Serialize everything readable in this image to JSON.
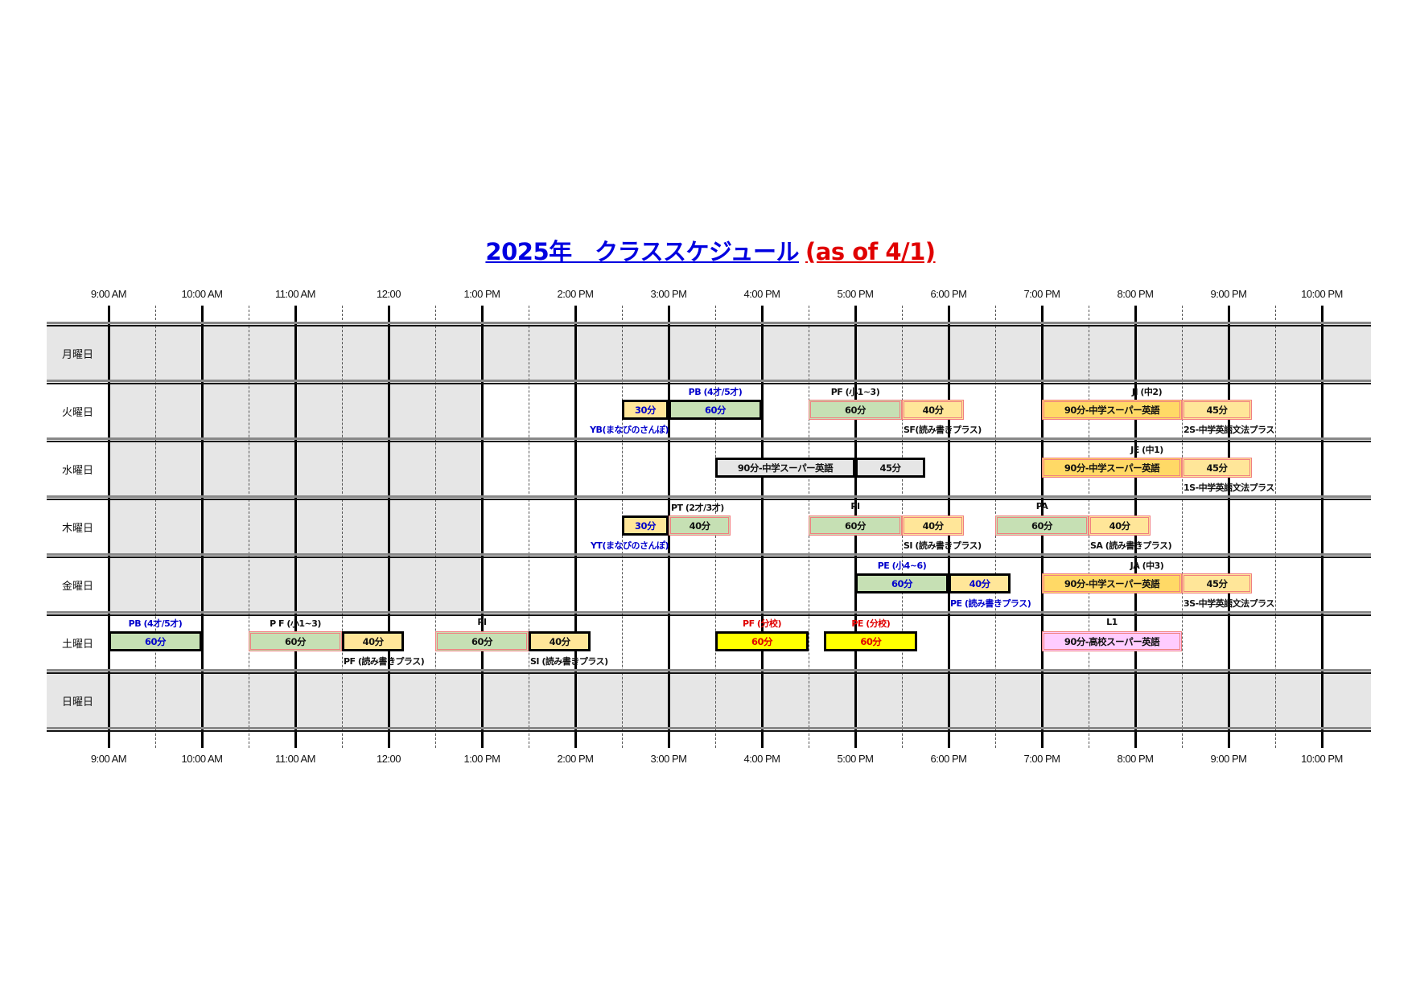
{
  "title": {
    "main": "2025年　クラススケジュール",
    "suffix": "(as of 4/1)"
  },
  "colors": {
    "title_blue": "#0000e0",
    "title_red": "#e00000",
    "green": "#c6e0b4",
    "yellow": "#ffe699",
    "orange": "#ffd966",
    "grey": "#e6e6e6",
    "bright_yellow": "#ffff00",
    "pink": "#ffccff",
    "red_border": "#f08080",
    "blue_text": "#0000cc",
    "red_text": "#e00000"
  },
  "time_ticks": [
    "9:00 AM",
    "10:00 AM",
    "11:00 AM",
    "12:00",
    "1:00 PM",
    "2:00 PM",
    "3:00 PM",
    "4:00 PM",
    "5:00 PM",
    "6:00 PM",
    "7:00 PM",
    "8:00 PM",
    "9:00 PM",
    "10:00 PM"
  ],
  "days": [
    {
      "label": "月曜日",
      "closed": true
    },
    {
      "label": "火曜日",
      "morning_closed": true
    },
    {
      "label": "水曜日",
      "morning_closed": true
    },
    {
      "label": "木曜日",
      "morning_closed": true
    },
    {
      "label": "金曜日",
      "morning_closed": true
    },
    {
      "label": "土曜日"
    },
    {
      "label": "日曜日",
      "closed": true
    }
  ],
  "classes": [
    {
      "day": 1,
      "top": "",
      "bottom": "YB(まなびのさんぽ)",
      "bottom_anchor": "end-right",
      "text_color": "blue",
      "segments": [
        {
          "start": "14:30",
          "end": "15:00",
          "label": "30分",
          "fill": "yellow",
          "border": "black"
        }
      ]
    },
    {
      "day": 1,
      "top": "PB (4才/5才)",
      "top_over": "first",
      "text_color": "blue",
      "segments": [
        {
          "start": "15:00",
          "end": "16:00",
          "label": "60分",
          "fill": "green",
          "border": "black"
        }
      ]
    },
    {
      "day": 1,
      "top": "PF (小1~3)",
      "top_over": "first",
      "bottom": "SF(読み書きプラス)",
      "bottom_anchor": "second",
      "segments": [
        {
          "start": "16:30",
          "end": "17:30",
          "label": "60分",
          "fill": "green",
          "border": "red"
        },
        {
          "start": "17:30",
          "end": "18:10",
          "label": "40分",
          "fill": "yellow",
          "border": "red"
        }
      ]
    },
    {
      "day": 1,
      "top": "JI (中2)",
      "top_over": "group",
      "bottom": "2S-中学英語文法プラス",
      "bottom_anchor": "second",
      "segments": [
        {
          "start": "19:00",
          "end": "20:30",
          "label": "90分-中学スーパー英語",
          "fill": "orange",
          "border": "red"
        },
        {
          "start": "20:30",
          "end": "21:15",
          "label": "45分",
          "fill": "yellow",
          "border": "red"
        }
      ]
    },
    {
      "day": 2,
      "top": "",
      "segments": [
        {
          "start": "15:30",
          "end": "17:00",
          "label": "90分-中学スーパー英語",
          "fill": "grey",
          "border": "black"
        },
        {
          "start": "17:00",
          "end": "17:45",
          "label": "45分",
          "fill": "grey",
          "border": "black"
        }
      ]
    },
    {
      "day": 2,
      "top": "JE (中1)",
      "top_over": "group",
      "bottom": "1S-中学英語文法プラス",
      "bottom_anchor": "second",
      "segments": [
        {
          "start": "19:00",
          "end": "20:30",
          "label": "90分-中学スーパー英語",
          "fill": "orange",
          "border": "red"
        },
        {
          "start": "20:30",
          "end": "21:15",
          "label": "45分",
          "fill": "yellow",
          "border": "red"
        }
      ]
    },
    {
      "day": 3,
      "top": "",
      "bottom": "YT(まなびのさんぽ)",
      "bottom_anchor": "end-right",
      "text_color": "blue",
      "segments": [
        {
          "start": "14:30",
          "end": "15:00",
          "label": "30分",
          "fill": "yellow",
          "border": "black"
        }
      ]
    },
    {
      "day": 3,
      "top": "PT (2才/3才)",
      "top_over": "first-left",
      "segments": [
        {
          "start": "15:00",
          "end": "15:40",
          "label": "40分",
          "fill": "green",
          "border": "red"
        }
      ]
    },
    {
      "day": 3,
      "top": "PI",
      "top_over": "first",
      "bottom": "SI (読み書きプラス)",
      "bottom_anchor": "second",
      "segments": [
        {
          "start": "16:30",
          "end": "17:30",
          "label": "60分",
          "fill": "green",
          "border": "red"
        },
        {
          "start": "17:30",
          "end": "18:10",
          "label": "40分",
          "fill": "yellow",
          "border": "red"
        }
      ]
    },
    {
      "day": 3,
      "top": "PA",
      "top_over": "first",
      "bottom": "SA (読み書きプラス)",
      "bottom_anchor": "second",
      "segments": [
        {
          "start": "18:30",
          "end": "19:30",
          "label": "60分",
          "fill": "green",
          "border": "red"
        },
        {
          "start": "19:30",
          "end": "20:10",
          "label": "40分",
          "fill": "yellow",
          "border": "red"
        }
      ]
    },
    {
      "day": 4,
      "top": "PE (小4~6)",
      "top_over": "first",
      "bottom": "PE (読み書きプラス)",
      "bottom_anchor": "second",
      "text_color": "blue",
      "segments": [
        {
          "start": "17:00",
          "end": "18:00",
          "label": "60分",
          "fill": "green",
          "border": "black"
        },
        {
          "start": "18:00",
          "end": "18:40",
          "label": "40分",
          "fill": "yellow",
          "border": "black"
        }
      ]
    },
    {
      "day": 4,
      "top": "JA (中3)",
      "top_over": "group",
      "bottom": "3S-中学英語文法プラス",
      "bottom_anchor": "second",
      "segments": [
        {
          "start": "19:00",
          "end": "20:30",
          "label": "90分-中学スーパー英語",
          "fill": "orange",
          "border": "red"
        },
        {
          "start": "20:30",
          "end": "21:15",
          "label": "45分",
          "fill": "yellow",
          "border": "red"
        }
      ]
    },
    {
      "day": 5,
      "top": "PB (4才/5才)",
      "top_over": "first",
      "text_color": "blue",
      "segments": [
        {
          "start": "9:00",
          "end": "10:00",
          "label": "60分",
          "fill": "green",
          "border": "black"
        }
      ]
    },
    {
      "day": 5,
      "top": "P F (小1~3)",
      "top_over": "first",
      "bottom": "PF (読み書きプラス)",
      "bottom_anchor": "second",
      "segments": [
        {
          "start": "10:30",
          "end": "11:30",
          "label": "60分",
          "fill": "green",
          "border": "red"
        },
        {
          "start": "11:30",
          "end": "12:10",
          "label": "40分",
          "fill": "yellow",
          "border": "black"
        }
      ]
    },
    {
      "day": 5,
      "top": "PI",
      "top_over": "first",
      "bottom": "SI (読み書きプラス)",
      "bottom_anchor": "second",
      "segments": [
        {
          "start": "12:30",
          "end": "13:30",
          "label": "60分",
          "fill": "green",
          "border": "red"
        },
        {
          "start": "13:30",
          "end": "14:10",
          "label": "40分",
          "fill": "yellow",
          "border": "black"
        }
      ]
    },
    {
      "day": 5,
      "top": "PF (分校)",
      "top_over": "first",
      "text_color": "red",
      "segments": [
        {
          "start": "15:30",
          "end": "16:30",
          "label": "60分",
          "fill": "bright_yellow",
          "border": "black"
        }
      ]
    },
    {
      "day": 5,
      "top": "PE (分校)",
      "top_over": "first",
      "text_color": "red",
      "segments": [
        {
          "start": "16:40",
          "end": "17:40",
          "label": "60分",
          "fill": "bright_yellow",
          "border": "black"
        }
      ]
    },
    {
      "day": 5,
      "top": "L1",
      "top_over": "group",
      "segments": [
        {
          "start": "19:00",
          "end": "20:30",
          "label": "90分-高校スーパー英語",
          "fill": "pink",
          "border": "red"
        }
      ]
    }
  ]
}
